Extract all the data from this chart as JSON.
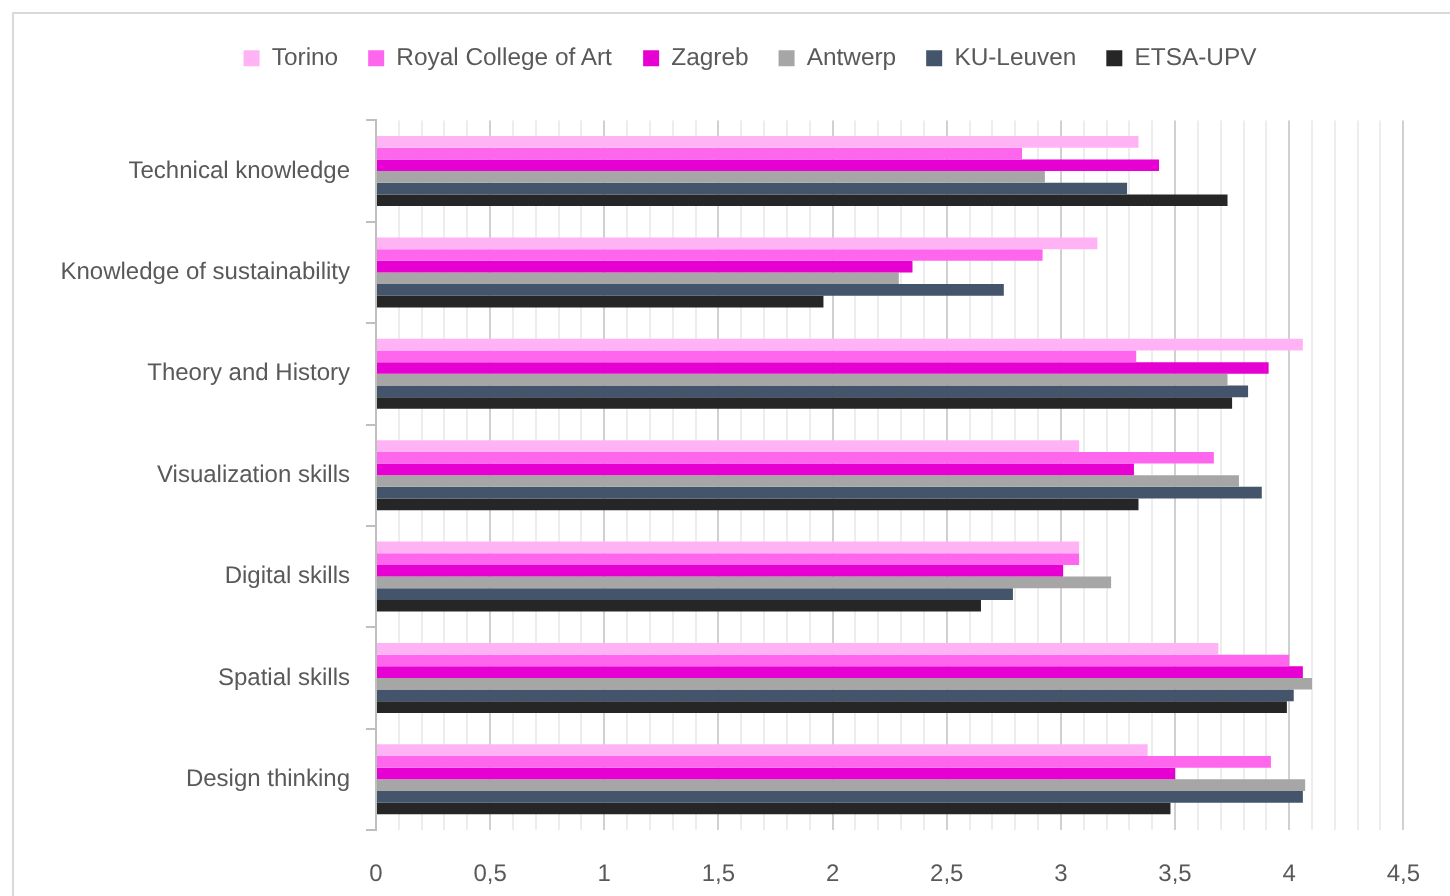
{
  "chart_data": {
    "type": "bar",
    "orientation": "horizontal",
    "categories": [
      "Technical knowledge",
      "Knowledge of sustainability",
      "Theory and History",
      "Visualization skills",
      "Digital skills",
      "Spatial skills",
      "Design thinking"
    ],
    "series": [
      {
        "name": "Torino",
        "color": "#ffb3f5",
        "values": [
          3.34,
          3.16,
          4.06,
          3.08,
          3.08,
          3.69,
          3.38
        ]
      },
      {
        "name": "Royal College of Art",
        "color": "#ff66ee",
        "values": [
          2.83,
          2.92,
          3.33,
          3.67,
          3.08,
          4.0,
          3.92
        ]
      },
      {
        "name": "Zagreb",
        "color": "#e600d2",
        "values": [
          3.43,
          2.35,
          3.91,
          3.32,
          3.01,
          4.06,
          3.5
        ]
      },
      {
        "name": "Antwerp",
        "color": "#a6a6a6",
        "values": [
          2.93,
          2.29,
          3.73,
          3.78,
          3.22,
          4.1,
          4.07
        ]
      },
      {
        "name": "KU-Leuven",
        "color": "#44546a",
        "values": [
          3.29,
          2.75,
          3.82,
          3.88,
          2.79,
          4.02,
          4.06
        ]
      },
      {
        "name": "ETSA-UPV",
        "color": "#262626",
        "values": [
          3.73,
          1.96,
          3.75,
          3.34,
          2.65,
          3.99,
          3.48
        ]
      }
    ],
    "xlim": [
      0,
      4.5
    ],
    "xticks": [
      0,
      {
        "value": 0.1,
        "label": null
      },
      {
        "value": 0.2,
        "label": null
      },
      {
        "value": 0.3,
        "label": null
      },
      {
        "value": 0.4,
        "label": null
      },
      {
        "value": 0.5,
        "label": "0,5"
      },
      {
        "value": 0.6,
        "label": null
      },
      {
        "value": 0.7,
        "label": null
      },
      {
        "value": 0.8,
        "label": null
      },
      {
        "value": 0.9,
        "label": null
      },
      1,
      {
        "value": 1.1,
        "label": null
      },
      {
        "value": 1.2,
        "label": null
      },
      {
        "value": 1.3,
        "label": null
      },
      {
        "value": 1.4,
        "label": null
      },
      {
        "value": 1.5,
        "label": "1,5"
      },
      {
        "value": 1.6,
        "label": null
      },
      {
        "value": 1.7,
        "label": null
      },
      {
        "value": 1.8,
        "label": null
      },
      {
        "value": 1.9,
        "label": null
      },
      2,
      {
        "value": 2.1,
        "label": null
      },
      {
        "value": 2.2,
        "label": null
      },
      {
        "value": 2.3,
        "label": null
      },
      {
        "value": 2.4,
        "label": null
      },
      {
        "value": 2.5,
        "label": "2,5"
      },
      {
        "value": 2.6,
        "label": null
      },
      {
        "value": 2.7,
        "label": null
      },
      {
        "value": 2.8,
        "label": null
      },
      {
        "value": 2.9,
        "label": null
      },
      3,
      {
        "value": 3.1,
        "label": null
      },
      {
        "value": 3.2,
        "label": null
      },
      {
        "value": 3.3,
        "label": null
      },
      {
        "value": 3.4,
        "label": null
      },
      {
        "value": 3.5,
        "label": "3,5"
      },
      {
        "value": 3.6,
        "label": null
      },
      {
        "value": 3.7,
        "label": null
      },
      {
        "value": 3.8,
        "label": null
      },
      {
        "value": 3.9,
        "label": null
      },
      4,
      {
        "value": 4.1,
        "label": null
      },
      {
        "value": 4.2,
        "label": null
      },
      {
        "value": 4.3,
        "label": null
      },
      {
        "value": 4.4,
        "label": null
      },
      {
        "value": 4.5,
        "label": "4,5"
      }
    ],
    "grid": "x",
    "legend": "top"
  }
}
